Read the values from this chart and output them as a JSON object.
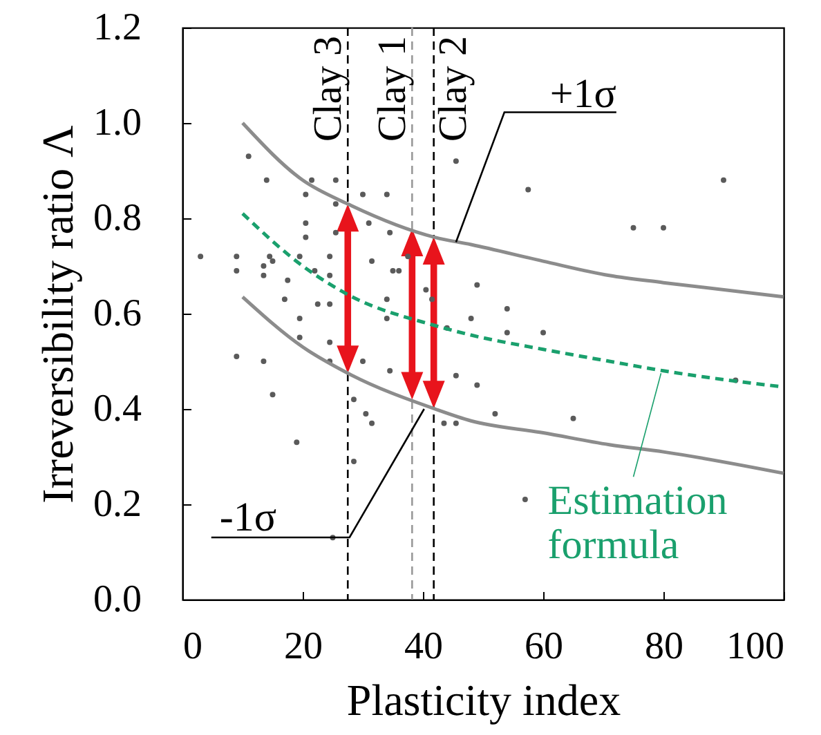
{
  "chart_data": {
    "type": "scatter",
    "xlabel": "Plasticity index",
    "ylabel": "Irreversibility ratio Λ",
    "xlim": [
      0,
      100
    ],
    "xticks": [
      0,
      20,
      40,
      60,
      80,
      100
    ],
    "ylim": [
      0,
      1.2
    ],
    "yticks": [
      {
        "value": 0,
        "label": "0.0"
      },
      0.2,
      0.4,
      0.6,
      0.8,
      {
        "value": 1,
        "label": "1.0"
      },
      1.2
    ],
    "series": [
      {
        "marker": "circle",
        "color": "#5a5a5a",
        "x": [
          3,
          9,
          9,
          11,
          14,
          13.5,
          13.5,
          14.5,
          15,
          17.5,
          17,
          9,
          13.5,
          15,
          19,
          19.5,
          19.5,
          19.5,
          20.5,
          21.5,
          20.5,
          20.5,
          22,
          22.5,
          24.5,
          24.5,
          24.5,
          25.5,
          25.5,
          25.5,
          24.5,
          24.5,
          28.5,
          28.5,
          30.5,
          31.5,
          30,
          30,
          31,
          31.5,
          34,
          34.5,
          35,
          36,
          34,
          34,
          34.5,
          37.5,
          40.5,
          41.5,
          44,
          45.5,
          49,
          48,
          49,
          43.5,
          45.5,
          52,
          45.5,
          25,
          57.5,
          75,
          80,
          90,
          54,
          54,
          60,
          65,
          92,
          57
        ],
        "values": [
          0.72,
          0.72,
          0.69,
          0.93,
          0.88,
          0.7,
          0.68,
          0.72,
          0.71,
          0.67,
          0.63,
          0.51,
          0.5,
          0.43,
          0.33,
          0.59,
          0.55,
          0.72,
          0.85,
          0.88,
          0.79,
          0.76,
          0.69,
          0.62,
          0.62,
          0.68,
          0.72,
          0.88,
          0.83,
          0.77,
          0.54,
          0.5,
          0.42,
          0.29,
          0.39,
          0.37,
          0.5,
          0.85,
          0.79,
          0.71,
          0.85,
          0.77,
          0.69,
          0.69,
          0.63,
          0.59,
          0.48,
          0.72,
          0.65,
          0.63,
          0.57,
          0.47,
          0.45,
          0.59,
          0.66,
          0.37,
          0.37,
          0.39,
          0.92,
          0.13,
          0.86,
          0.78,
          0.78,
          0.88,
          0.61,
          0.56,
          0.56,
          0.38,
          0.46,
          0.21
        ]
      },
      {
        "type": "line",
        "color": "#8c8c8c",
        "line_style": "solid",
        "x": [
          10,
          20,
          27.5,
          42,
          48,
          60,
          71,
          80,
          100
        ],
        "values": [
          1.0,
          0.88,
          0.83,
          0.76,
          0.745,
          0.71,
          0.68,
          0.665,
          0.635
        ]
      },
      {
        "type": "line",
        "color": "#1aa06d",
        "line_style": "dashed",
        "x": [
          10,
          20,
          27.5,
          42,
          48,
          60,
          71,
          80,
          100
        ],
        "values": [
          0.81,
          0.7,
          0.64,
          0.575,
          0.555,
          0.525,
          0.5,
          0.48,
          0.446
        ]
      },
      {
        "type": "line",
        "color": "#8c8c8c",
        "line_style": "solid",
        "x": [
          10,
          20,
          27.5,
          42,
          48,
          60,
          71,
          80,
          100
        ],
        "values": [
          0.635,
          0.53,
          0.475,
          0.4,
          0.375,
          0.35,
          0.325,
          0.31,
          0.265
        ]
      }
    ],
    "ref_lines": [
      {
        "axis": "x",
        "value": 27.5,
        "label": "Clay 3",
        "color": "#000000",
        "line_style": "dashed"
      },
      {
        "axis": "x",
        "value": 38.2,
        "label": "Clay 1",
        "color": "#999999",
        "line_style": "dashed"
      },
      {
        "axis": "x",
        "value": 41.8,
        "label": "Clay 2",
        "color": "#000000",
        "line_style": "dashed"
      }
    ],
    "annotations": [
      {
        "text": "+1σ",
        "x": 45.5,
        "y": 0.75
      },
      {
        "text": "-1σ",
        "x": 40.2,
        "y": 0.4
      },
      {
        "text": "Estimation formula",
        "x": 79.6,
        "y": 0.475
      }
    ]
  }
}
